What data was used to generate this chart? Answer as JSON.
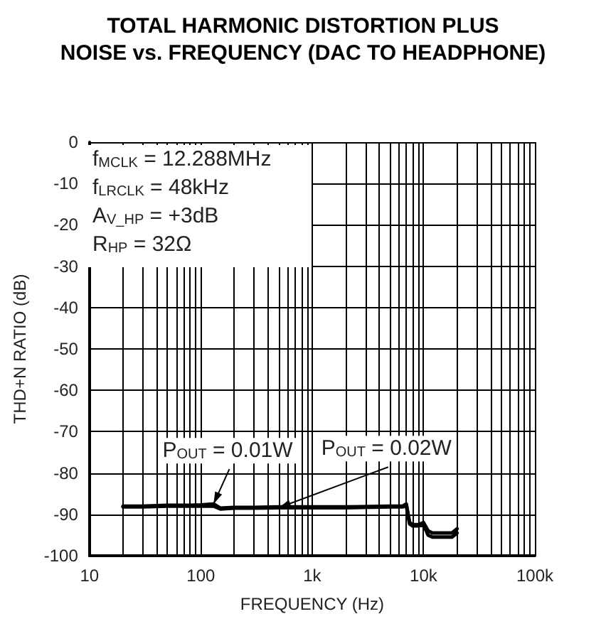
{
  "chart_data": {
    "type": "line",
    "title": "TOTAL HARMONIC DISTORTION PLUS\nNOISE vs. FREQUENCY (DAC TO HEADPHONE)",
    "xlabel": "FREQUENCY (Hz)",
    "ylabel": "THD+N RATIO (dB)",
    "log": "x",
    "grid": true,
    "legend": false,
    "marker": "none",
    "line_style": "solid",
    "xlim": [
      10,
      100000
    ],
    "xticks": [
      10,
      100,
      {
        "value": 1000,
        "label": "1k"
      },
      {
        "value": 10000,
        "label": "10k"
      },
      {
        "value": 100000,
        "label": "100k"
      }
    ],
    "ylim": [
      -100,
      0
    ],
    "yticks": [
      -100,
      -90,
      -80,
      -70,
      -60,
      -50,
      -40,
      -30,
      -20,
      -10,
      0
    ],
    "annotations": [
      "f$_{MCLK}$ = 12.288MHz",
      "f$_{LRCLK}$ = 48kHz",
      "A$_{V_HP}$ = +3dB",
      "R$_{HP}$ = 32Ω"
    ],
    "x": [
      20,
      30,
      50,
      80,
      100,
      130,
      150,
      200,
      300,
      500,
      1000,
      2000,
      5000,
      6500,
      7000,
      7500,
      8000,
      9000,
      10000,
      11000,
      12000,
      15000,
      18000,
      20000
    ],
    "series": [
      {
        "name": "P$_{OUT}$ = 0.01W",
        "color": "#000000",
        "values": [
          -88,
          -88,
          -87.8,
          -87.8,
          -87.7,
          -87.5,
          -88.5,
          -88.3,
          -88.3,
          -88.2,
          -88.2,
          -88.2,
          -88,
          -88,
          -87.5,
          -92,
          -92.5,
          -92.5,
          -92,
          -94,
          -94.5,
          -94.5,
          -94.5,
          -93.5
        ]
      },
      {
        "name": "P$_{OUT}$ = 0.02W",
        "color": "#000000",
        "values": [
          -88.2,
          -88.2,
          -88,
          -88,
          -88,
          -88,
          -88.7,
          -88.5,
          -88.5,
          -88.4,
          -88.4,
          -88.4,
          -88.2,
          -88.2,
          -87.8,
          -92.3,
          -92.8,
          -92.8,
          -92.5,
          -95,
          -95.5,
          -95.5,
          -95.5,
          -94.5
        ]
      }
    ]
  }
}
